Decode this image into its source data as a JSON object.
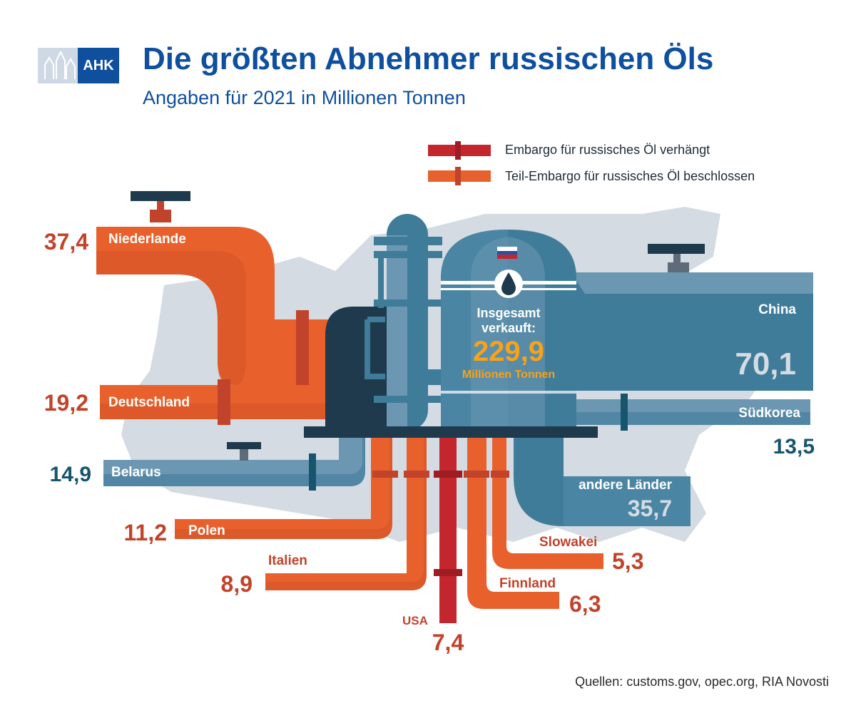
{
  "header": {
    "logo_text": "AHK",
    "title": "Die größten Abnehmer russischen Öls",
    "subtitle": "Angaben für 2021 in Millionen Tonnen"
  },
  "legend": {
    "items": [
      {
        "label": "Embargo für russisches Öl verhängt",
        "color": "#c4262e"
      },
      {
        "label": "Teil-Embargo für russisches Öl beschlossen",
        "color": "#e8612c"
      }
    ]
  },
  "center": {
    "total_label": "Insgesamt verkauft:",
    "total_label_line1": "Insgesamt",
    "total_label_line2": "verkauft:",
    "total_value": "229,9",
    "total_unit": "Millionen Tonnen"
  },
  "chart_data": {
    "type": "bar",
    "title": "Die größten Abnehmer russischen Öls",
    "subtitle": "Angaben für 2021 in Millionen Tonnen",
    "unit": "Millionen Tonnen",
    "total": 229.9,
    "categories": [
      "Niederlande",
      "Deutschland",
      "Belarus",
      "Polen",
      "Italien",
      "USA",
      "Finnland",
      "Slowakei",
      "China",
      "Südkorea",
      "andere Länder"
    ],
    "values": [
      37.4,
      19.2,
      14.9,
      11.2,
      8.9,
      7.4,
      6.3,
      5.3,
      70.1,
      13.5,
      35.7
    ],
    "value_labels": [
      "37,4",
      "19,2",
      "14,9",
      "11,2",
      "8,9",
      "7,4",
      "6,3",
      "5,3",
      "70,1",
      "13,5",
      "35,7"
    ],
    "status": [
      "Teil-Embargo",
      "Teil-Embargo",
      "kein Embargo",
      "Teil-Embargo",
      "Teil-Embargo",
      "Embargo",
      "Teil-Embargo",
      "Teil-Embargo",
      "kein Embargo",
      "kein Embargo",
      "kein Embargo"
    ]
  },
  "colors": {
    "embargo": "#c4262e",
    "partial": "#e8612c",
    "none": "#3f7c99",
    "title_blue": "#0e4f9e",
    "partial_label": "#c1432b",
    "none_label": "#17556f"
  },
  "source": "Quellen: customs.gov, opec.org, RIA Novosti"
}
